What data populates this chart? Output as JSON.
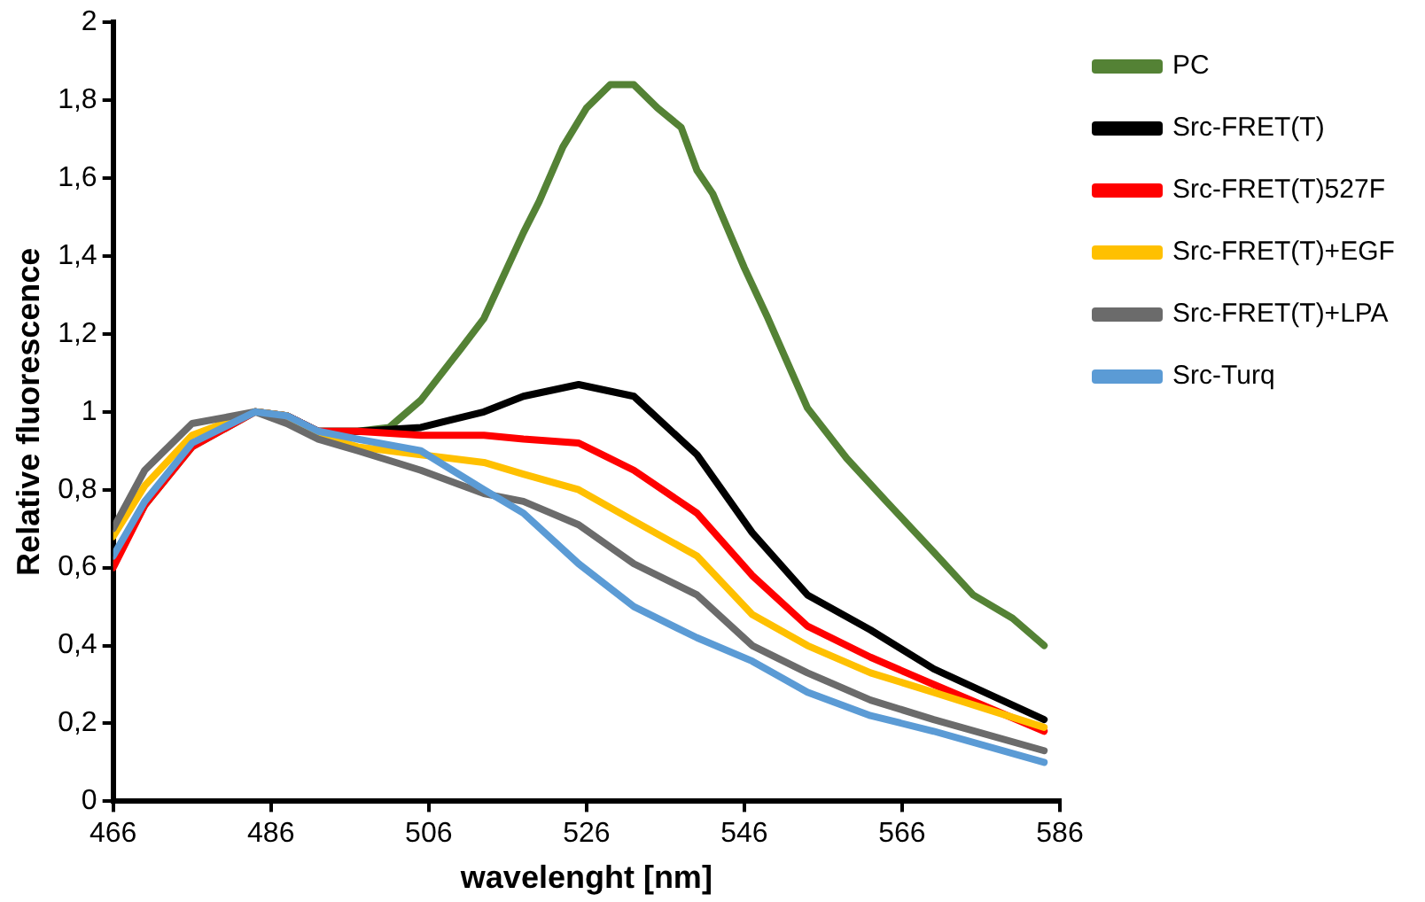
{
  "chart_data": {
    "type": "line",
    "xlabel": "wavelenght [nm]",
    "ylabel": "Relative fluorescence",
    "x": [
      466,
      470,
      476,
      484,
      488,
      492,
      497,
      505,
      513,
      518,
      525,
      532,
      540,
      547,
      554,
      562,
      570,
      584
    ],
    "xlim": [
      466,
      586
    ],
    "xticks": [
      466,
      486,
      506,
      526,
      546,
      566,
      586
    ],
    "ylim": [
      0,
      2
    ],
    "yticks": [
      0,
      {
        "value": 0.2,
        "label": "0,2"
      },
      {
        "value": 0.4,
        "label": "0,4"
      },
      {
        "value": 0.6,
        "label": "0,6"
      },
      {
        "value": 0.8,
        "label": "0,8"
      },
      1,
      {
        "value": 1.2,
        "label": "1,2"
      },
      {
        "value": 1.4,
        "label": "1,4"
      },
      {
        "value": 1.6,
        "label": "1,6"
      },
      {
        "value": 1.8,
        "label": "1,8"
      },
      2
    ],
    "grid": false,
    "legend": "top right",
    "marker": "none",
    "line_style": "solid",
    "series": [
      {
        "name": "PC",
        "color": "#548235",
        "x": [
          466,
          470,
          476,
          484,
          488,
          492,
          497,
          501,
          505,
          510,
          513,
          518,
          520,
          523,
          526,
          529,
          532,
          535,
          538,
          540,
          542,
          546,
          549,
          554,
          559,
          564,
          570,
          575,
          580,
          584
        ],
        "values": [
          0.61,
          0.76,
          0.91,
          1.0,
          0.99,
          0.95,
          0.95,
          0.96,
          1.03,
          1.16,
          1.24,
          1.46,
          1.54,
          1.68,
          1.78,
          1.84,
          1.84,
          1.78,
          1.73,
          1.62,
          1.56,
          1.37,
          1.24,
          1.01,
          0.88,
          0.77,
          0.64,
          0.53,
          0.47,
          0.4
        ]
      },
      {
        "name": "Src-FRET(T)",
        "color": "#000000",
        "values": [
          null,
          null,
          null,
          1.0,
          0.99,
          0.95,
          0.95,
          0.96,
          1.0,
          1.04,
          1.07,
          1.04,
          0.89,
          0.69,
          0.53,
          0.44,
          0.34,
          0.21
        ]
      },
      {
        "name": "Src-FRET(T)527F",
        "color": "#ff0000",
        "values": [
          0.6,
          0.76,
          0.91,
          1.0,
          0.99,
          0.95,
          0.95,
          0.94,
          0.94,
          0.93,
          0.92,
          0.85,
          0.74,
          0.58,
          0.45,
          0.37,
          0.3,
          0.18
        ]
      },
      {
        "name": "Src-FRET(T)+EGF",
        "color": "#ffc000",
        "values": [
          0.68,
          0.81,
          0.94,
          1.0,
          0.99,
          0.94,
          0.91,
          0.89,
          0.87,
          0.84,
          0.8,
          0.72,
          0.63,
          0.48,
          0.4,
          0.33,
          0.28,
          0.19
        ]
      },
      {
        "name": "Src-FRET(T)+LPA",
        "color": "#6b6b6b",
        "values": [
          0.7,
          0.85,
          0.97,
          1.0,
          0.97,
          0.93,
          0.9,
          0.85,
          0.79,
          0.77,
          0.71,
          0.61,
          0.53,
          0.4,
          0.33,
          0.26,
          0.21,
          0.13
        ]
      },
      {
        "name": "Src-Turq",
        "color": "#5b9bd5",
        "values": [
          0.63,
          0.77,
          0.92,
          1.0,
          0.99,
          0.95,
          0.93,
          0.9,
          0.8,
          0.74,
          0.61,
          0.5,
          0.42,
          0.36,
          0.28,
          0.22,
          0.18,
          0.1
        ]
      }
    ]
  }
}
